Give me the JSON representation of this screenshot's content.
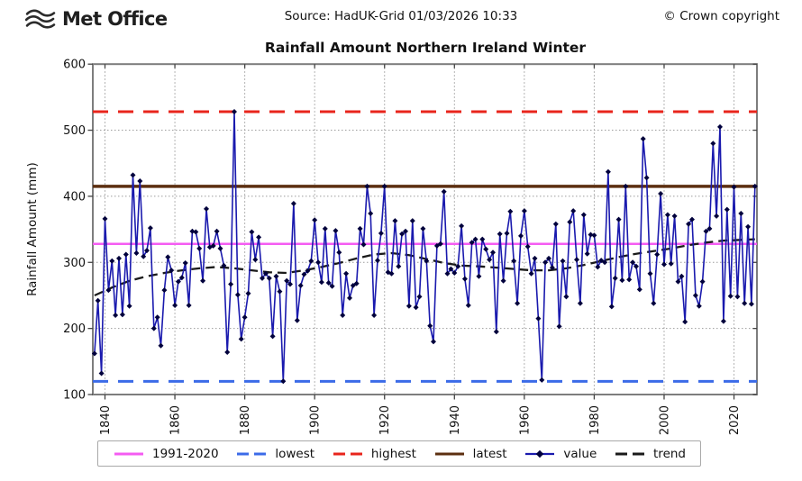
{
  "header": {
    "logo_text": "Met Office",
    "source": "Source: HadUK-Grid 01/03/2026 10:33",
    "copyright": "© Crown copyright"
  },
  "chart_data": {
    "type": "line",
    "title": "Rainfall Amount Northern Ireland Winter",
    "xlabel": "",
    "ylabel": "Rainfall Amount (mm)",
    "ylim": [
      100,
      600
    ],
    "xlim": [
      1836.5,
      2026.5
    ],
    "grid": true,
    "legend_position": "bottom",
    "y_ticks": [
      100,
      200,
      300,
      400,
      500,
      600
    ],
    "x_ticks": [
      1840,
      1860,
      1880,
      1900,
      1920,
      1940,
      1960,
      1980,
      2000,
      2020
    ],
    "reference_lines": [
      {
        "name": "1991-2020 average",
        "value": 328,
        "color": "#f45cf2",
        "style": "solid",
        "width": 2.4
      },
      {
        "name": "lowest",
        "value": 120,
        "color": "#3b6be8",
        "style": "dashed",
        "width": 3
      },
      {
        "name": "highest",
        "value": 528,
        "color": "#e8251c",
        "style": "dashed",
        "width": 3
      },
      {
        "name": "latest",
        "value": 415,
        "color": "#5c2f10",
        "style": "solid",
        "width": 3.5
      }
    ],
    "series": [
      {
        "name": "value",
        "color": "#1a1aae",
        "marker": "diamond",
        "marker_color": "#00003c",
        "start_year": 1837,
        "step": 1,
        "values": [
          162,
          242,
          132,
          366,
          258,
          302,
          220,
          306,
          221,
          312,
          234,
          432,
          314,
          423,
          309,
          318,
          352,
          200,
          217,
          174,
          258,
          308,
          288,
          235,
          271,
          277,
          299,
          235,
          347,
          346,
          321,
          272,
          381,
          323,
          325,
          347,
          321,
          295,
          164,
          267,
          528,
          251,
          184,
          217,
          253,
          346,
          304,
          338,
          276,
          283,
          276,
          188,
          279,
          256,
          120,
          272,
          267,
          389,
          212,
          265,
          282,
          287,
          302,
          364,
          300,
          270,
          351,
          269,
          264,
          348,
          315,
          220,
          283,
          246,
          265,
          268,
          351,
          327,
          415,
          374,
          220,
          303,
          344,
          415,
          285,
          283,
          363,
          294,
          343,
          347,
          234,
          363,
          232,
          248,
          351,
          302,
          204,
          180,
          325,
          328,
          407,
          283,
          290,
          284,
          294,
          355,
          275,
          235,
          330,
          335,
          279,
          335,
          320,
          304,
          315,
          195,
          343,
          272,
          344,
          377,
          302,
          238,
          340,
          378,
          324,
          283,
          306,
          215,
          122,
          300,
          306,
          292,
          358,
          203,
          302,
          248,
          361,
          378,
          304,
          238,
          372,
          313,
          342,
          341,
          293,
          303,
          300,
          437,
          233,
          276,
          365,
          273,
          415,
          274,
          300,
          294,
          259,
          487,
          428,
          283,
          238,
          312,
          404,
          297,
          372,
          298,
          370,
          271,
          279,
          210,
          358,
          365,
          250,
          234,
          271,
          347,
          351,
          480,
          370,
          505,
          211,
          380,
          249,
          414,
          248,
          374,
          238,
          354,
          237,
          415
        ]
      },
      {
        "name": "trend",
        "color": "#1a1a1a",
        "style": "dashed",
        "years": [
          1837,
          1842,
          1847,
          1852,
          1857,
          1862,
          1867,
          1872,
          1877,
          1882,
          1887,
          1892,
          1897,
          1902,
          1907,
          1912,
          1917,
          1922,
          1927,
          1932,
          1937,
          1942,
          1947,
          1952,
          1957,
          1962,
          1967,
          1972,
          1977,
          1982,
          1987,
          1992,
          1997,
          2002,
          2007,
          2012,
          2017,
          2022,
          2026
        ],
        "values": [
          250,
          262,
          272,
          279,
          284,
          288,
          291,
          293,
          291,
          288,
          285,
          284,
          288,
          293,
          299,
          306,
          312,
          314,
          311,
          305,
          299,
          295,
          294,
          292,
          290,
          288,
          288,
          291,
          296,
          302,
          308,
          313,
          317,
          321,
          326,
          330,
          333,
          334,
          335
        ]
      }
    ],
    "legend": [
      {
        "label": "1991-2020",
        "color": "#f45cf2",
        "style": "solid"
      },
      {
        "label": "lowest",
        "color": "#3b6be8",
        "style": "dashed"
      },
      {
        "label": "highest",
        "color": "#e8251c",
        "style": "dashed"
      },
      {
        "label": "latest",
        "color": "#5c2f10",
        "style": "solid"
      },
      {
        "label": "value",
        "color": "#1a1aae",
        "style": "marker",
        "marker_color": "#00003c"
      },
      {
        "label": "trend",
        "color": "#1a1a1a",
        "style": "dashed"
      }
    ]
  }
}
